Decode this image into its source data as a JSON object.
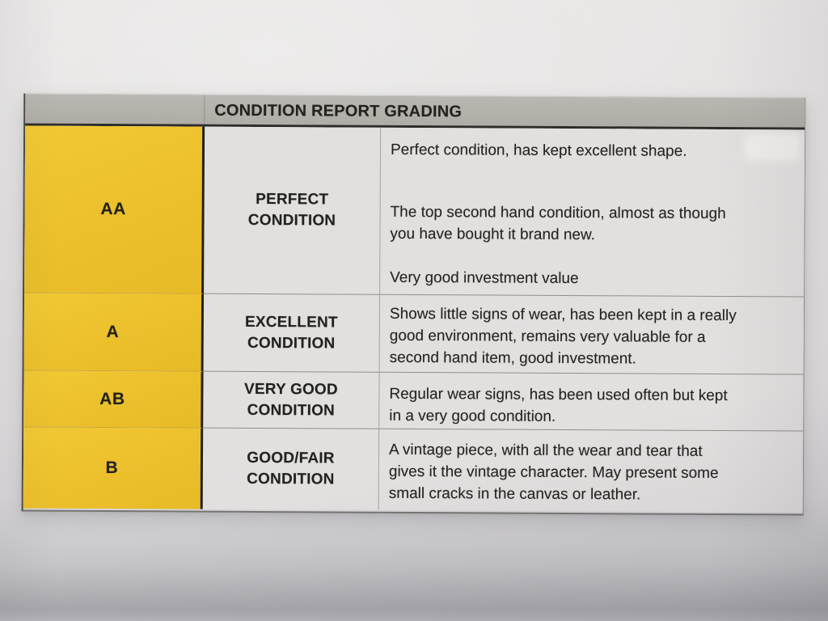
{
  "header": {
    "title": "CONDITION REPORT GRADING"
  },
  "rows": [
    {
      "grade": "AA",
      "condition_lines": [
        "PERFECT",
        "CONDITION"
      ],
      "paragraphs": [
        [
          "Perfect condition, has kept excellent shape."
        ],
        [
          "The top second hand condition, almost as though",
          "you have bought it brand new."
        ],
        [
          "Very good investment value"
        ]
      ]
    },
    {
      "grade": "A",
      "condition_lines": [
        "EXCELLENT",
        "CONDITION"
      ],
      "paragraphs": [
        [
          "Shows little signs of wear, has been kept in a really",
          "good environment, remains very valuable for a",
          "second hand item, good investment."
        ]
      ]
    },
    {
      "grade": "AB",
      "condition_lines": [
        "VERY GOOD",
        "CONDITION"
      ],
      "paragraphs": [
        [
          "Regular wear signs, has been used often but kept",
          "in a very good condition."
        ]
      ]
    },
    {
      "grade": "B",
      "condition_lines": [
        "GOOD/FAIR",
        "CONDITION"
      ],
      "paragraphs": [
        [
          "A vintage piece, with all the wear and tear that",
          "gives it the vintage character. May present some",
          "small cracks in the canvas or leather."
        ]
      ]
    }
  ],
  "colors": {
    "grade_yellow": "#EDC028",
    "header_gray": "#B5B1AB",
    "cell_gray": "#E3E1E0",
    "paper_background": "#E6E4E4",
    "bottom_shadow": "#ACABB0",
    "text": "#1E1E1C"
  }
}
